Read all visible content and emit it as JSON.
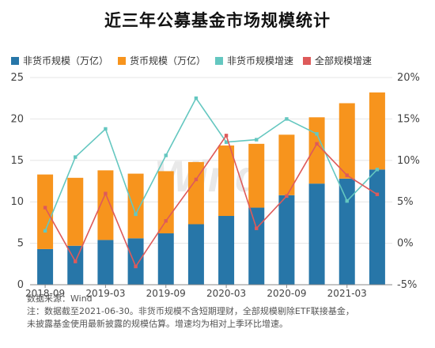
{
  "title": "近三年公募基金市场规模统计",
  "watermark": "Wind",
  "source": "数据来源：Wind",
  "notes": [
    "注：数据截至2021-06-30。非货币规模不含短期理财，全部规模剔除ETF联接基金，",
    "未披露基金使用最新披露的规模估算。增速均为相对上季环比增速。"
  ],
  "chart_data": {
    "type": "bar",
    "x": [
      "2018-09",
      "2018-12",
      "2019-03",
      "2019-06",
      "2019-09",
      "2019-12",
      "2020-03",
      "2020-06",
      "2020-09",
      "2020-12",
      "2021-03",
      "2021-06"
    ],
    "x_tick_labels": [
      "2018-09",
      "2019-03",
      "2019-09",
      "2020-03",
      "2020-09",
      "2021-03"
    ],
    "left_ylim": [
      0,
      25
    ],
    "left_ticks": [
      0,
      5,
      10,
      15,
      20,
      25
    ],
    "right_ylim": [
      -5,
      20
    ],
    "right_ticks": [
      "-5%",
      "0%",
      "5%",
      "10%",
      "15%",
      "20%"
    ],
    "series": [
      {
        "name": "非货币规模（万亿）",
        "kind": "bar",
        "axis": "left",
        "color": "#2776a8",
        "values": [
          4.3,
          4.7,
          5.4,
          5.6,
          6.2,
          7.3,
          8.3,
          9.3,
          10.8,
          12.2,
          12.8,
          13.9
        ]
      },
      {
        "name": "货币规模（万亿）",
        "kind": "bar",
        "axis": "left",
        "color": "#f7941d",
        "values": [
          9.0,
          8.2,
          8.4,
          7.8,
          7.5,
          7.5,
          8.5,
          7.7,
          7.3,
          8.0,
          9.1,
          9.3
        ]
      },
      {
        "name": "非货币规模增速",
        "kind": "line",
        "axis": "right",
        "color": "#64c7c0",
        "values": [
          1.5,
          10.4,
          13.8,
          3.5,
          10.6,
          17.5,
          12.2,
          12.5,
          15.0,
          13.2,
          5.1,
          8.9
        ]
      },
      {
        "name": "全部规模增速",
        "kind": "line",
        "axis": "right",
        "color": "#de5a5a",
        "values": [
          4.3,
          -2.2,
          6.0,
          -2.8,
          2.7,
          7.7,
          13.0,
          1.8,
          5.7,
          12.0,
          8.2,
          5.9
        ]
      }
    ]
  }
}
